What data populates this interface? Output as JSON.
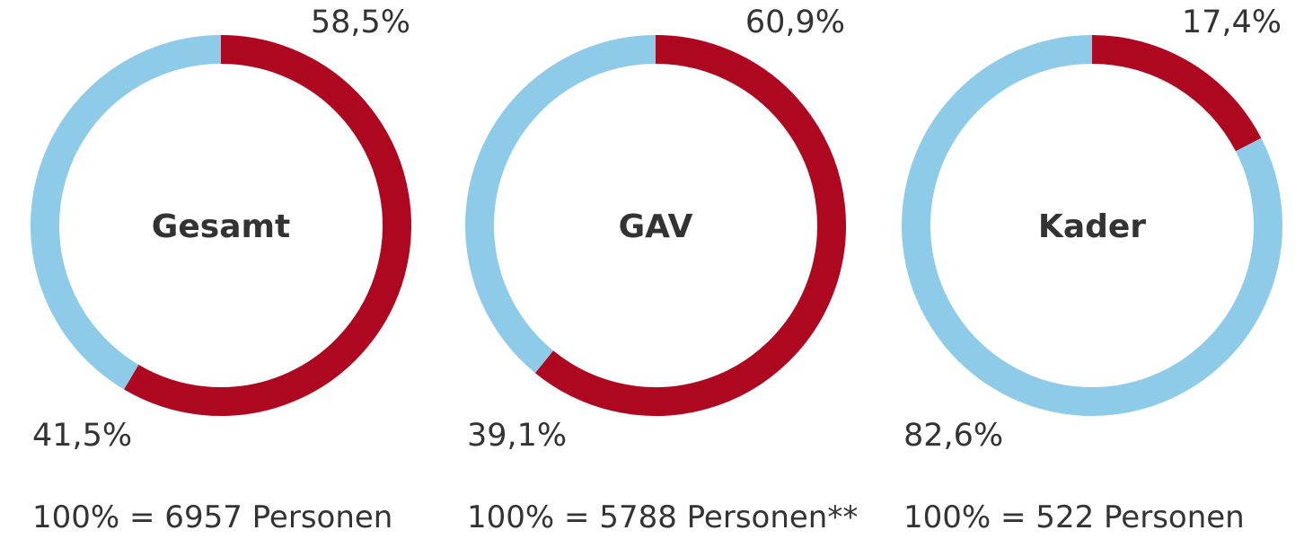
{
  "colors": {
    "primary": "#ad0820",
    "secondary": "#8ecbe8",
    "text": "#333333"
  },
  "chart_data": [
    {
      "type": "pie",
      "title": "Gesamt",
      "values": [
        58.5,
        41.5
      ],
      "labels": [
        "58,5%",
        "41,5%"
      ],
      "base": "100% = 6957 Personen"
    },
    {
      "type": "pie",
      "title": "GAV",
      "values": [
        60.9,
        39.1
      ],
      "labels": [
        "60,9%",
        "39,1%"
      ],
      "base": "100% = 5788 Personen**"
    },
    {
      "type": "pie",
      "title": "Kader",
      "values": [
        17.4,
        82.6
      ],
      "labels": [
        "17,4%",
        "82,6%"
      ],
      "base": "100% = 522 Personen"
    }
  ]
}
